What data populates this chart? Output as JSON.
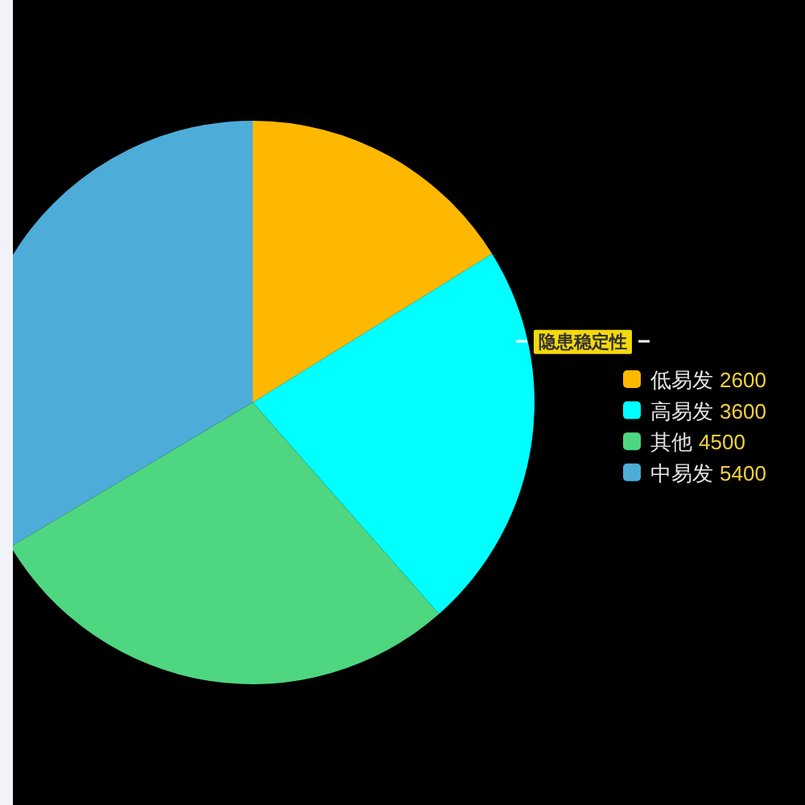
{
  "chart_data": {
    "type": "pie",
    "title": "隐患稳定性",
    "categories": [
      "低易发",
      "高易发",
      "其他",
      "中易发"
    ],
    "values": [
      2600,
      3600,
      4500,
      5400
    ],
    "colors": [
      "#ffb800",
      "#00ffff",
      "#4fd680",
      "#4eacd8"
    ],
    "legend": "right",
    "data_labels": true
  }
}
